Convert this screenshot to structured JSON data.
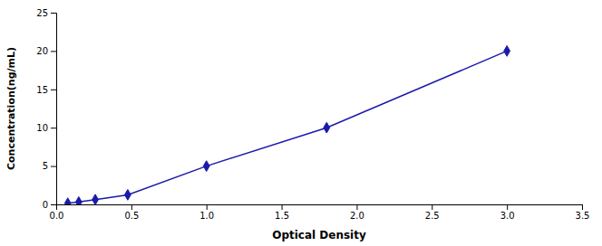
{
  "chart_data": {
    "type": "line",
    "x": [
      0.077,
      0.15,
      0.26,
      0.476,
      1.0,
      1.8,
      3.0
    ],
    "values": [
      0.156,
      0.312,
      0.625,
      1.25,
      5.0,
      10.0,
      20.0
    ],
    "color": "#1a1aaa",
    "marker": "diamond",
    "line_style": "solid",
    "xlabel": "Optical Density",
    "ylabel": "Concentration(ng/mL)",
    "xlim": [
      0,
      3.5
    ],
    "ylim": [
      0,
      25
    ],
    "xticks": [
      {
        "value": 0,
        "label": "0.0"
      },
      0.5,
      {
        "value": 1.0,
        "label": "1.0"
      },
      1.5,
      {
        "value": 2.0,
        "label": "2.0"
      },
      2.5,
      {
        "value": 3.0,
        "label": "3.0"
      },
      3.5
    ],
    "yticks": [
      0,
      5,
      10,
      15,
      20,
      25
    ],
    "grid": false
  }
}
